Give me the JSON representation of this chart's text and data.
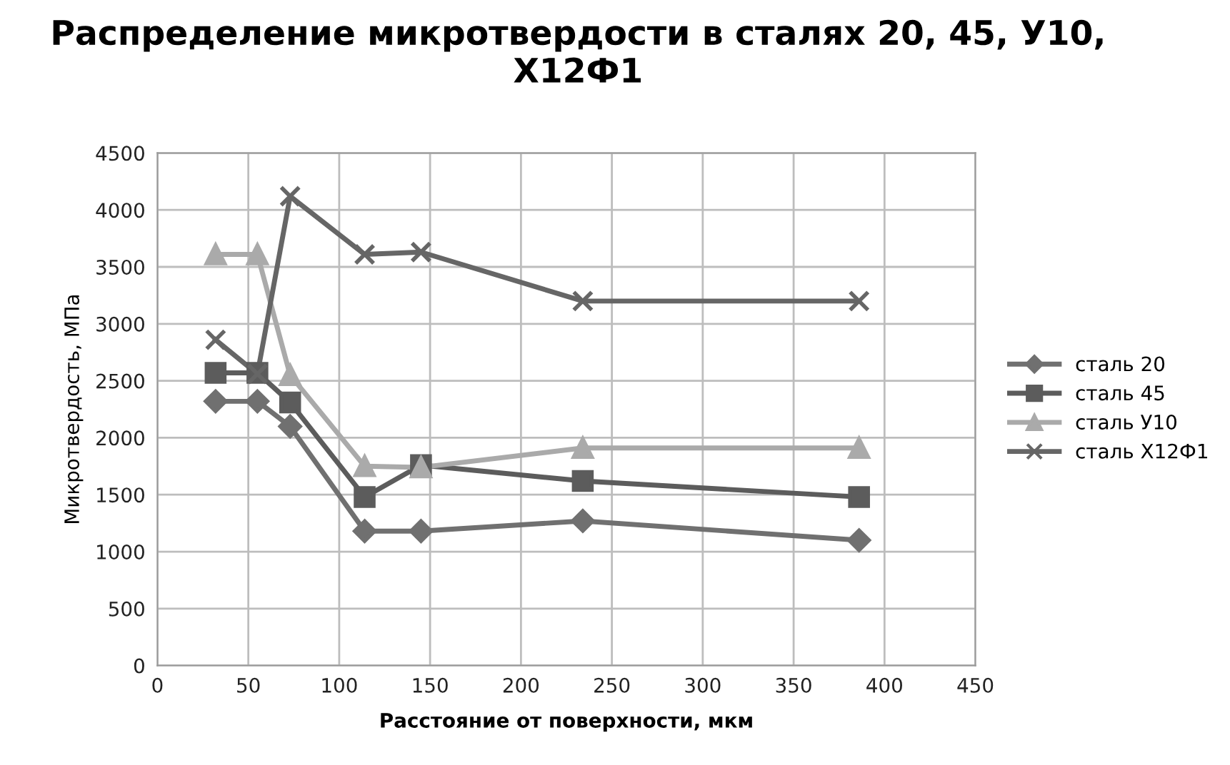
{
  "chart_data": {
    "type": "line",
    "title": "Распределение микротвердости в сталях 20, 45, У10, Х12Ф1",
    "xlabel": "Расстояние от поверхности, мкм",
    "ylabel": "Микротвердость, МПа",
    "x": [
      32,
      55,
      73,
      114,
      145,
      234,
      386
    ],
    "series": [
      {
        "name": "сталь 20",
        "color": "#707070",
        "marker": "diamond",
        "values": [
          2320,
          2320,
          2100,
          1180,
          1180,
          1270,
          1100
        ]
      },
      {
        "name": "сталь 45",
        "color": "#5c5c5c",
        "marker": "square",
        "values": [
          2570,
          2570,
          2310,
          1480,
          1760,
          1620,
          1480
        ]
      },
      {
        "name": "сталь У10",
        "color": "#aaaaaa",
        "marker": "triangle",
        "values": [
          3610,
          3610,
          2550,
          1750,
          1740,
          1910,
          1910
        ]
      },
      {
        "name": "сталь Х12Ф1",
        "color": "#666666",
        "marker": "cross",
        "values": [
          2860,
          2560,
          4120,
          3610,
          3630,
          3200,
          3200
        ]
      }
    ],
    "xlim": [
      0,
      450
    ],
    "xticks": [
      0,
      50,
      100,
      150,
      200,
      250,
      300,
      350,
      400,
      450
    ],
    "ylim": [
      0,
      4500
    ],
    "yticks": [
      0,
      500,
      1000,
      1500,
      2000,
      2500,
      3000,
      3500,
      4000,
      4500
    ],
    "grid": true,
    "legend": "right"
  }
}
